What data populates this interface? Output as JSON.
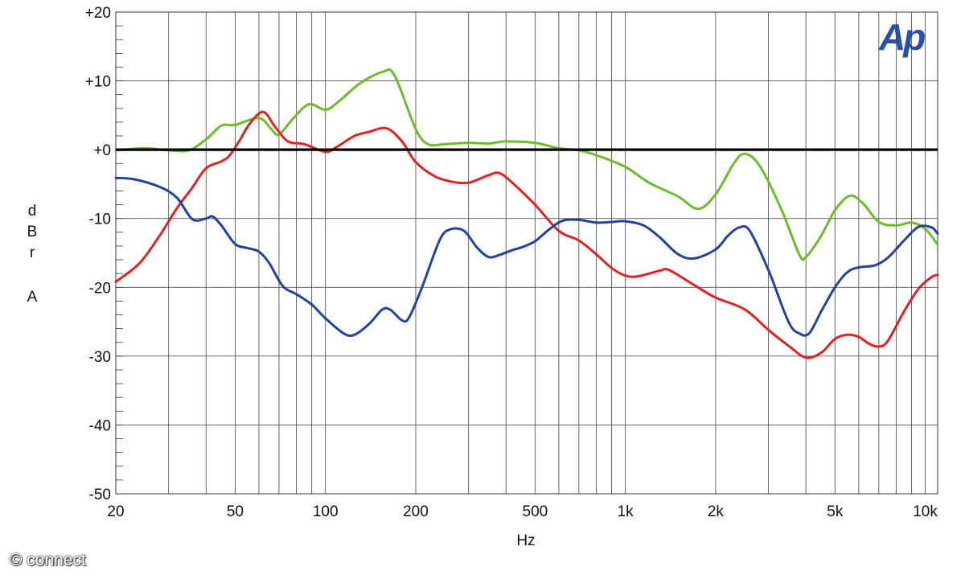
{
  "chart_data": {
    "type": "line",
    "x_scale": "log",
    "xlim": [
      20,
      11000
    ],
    "ylim": [
      -50,
      20
    ],
    "grid": true,
    "xlabel": "Hz",
    "ylabel": "dBr A",
    "ylabel_letters": [
      "d",
      "B",
      "r",
      "A"
    ],
    "x_ticks": [
      {
        "value": 20,
        "label": "20"
      },
      {
        "value": 50,
        "label": "50"
      },
      {
        "value": 100,
        "label": "100"
      },
      {
        "value": 200,
        "label": "200"
      },
      {
        "value": 500,
        "label": "500"
      },
      {
        "value": 1000,
        "label": "1k"
      },
      {
        "value": 2000,
        "label": "2k"
      },
      {
        "value": 5000,
        "label": "5k"
      },
      {
        "value": 10000,
        "label": "10k"
      }
    ],
    "y_ticks": [
      {
        "value": 20,
        "label": "+20"
      },
      {
        "value": 10,
        "label": "+10"
      },
      {
        "value": 0,
        "label": "+0"
      },
      {
        "value": -10,
        "label": "-10"
      },
      {
        "value": -20,
        "label": "-20"
      },
      {
        "value": -30,
        "label": "-30"
      },
      {
        "value": -40,
        "label": "-40"
      },
      {
        "value": -50,
        "label": "-50"
      }
    ],
    "reference_line": 0,
    "series": [
      {
        "color": "#6cbd2b",
        "points": [
          [
            20,
            -0.1
          ],
          [
            25,
            0.2
          ],
          [
            30,
            -0.1
          ],
          [
            35,
            -0.1
          ],
          [
            40,
            1.5
          ],
          [
            45,
            3.5
          ],
          [
            50,
            3.6
          ],
          [
            60,
            4.6
          ],
          [
            66,
            3.0
          ],
          [
            70,
            2.2
          ],
          [
            78,
            4.5
          ],
          [
            88,
            6.6
          ],
          [
            100,
            5.8
          ],
          [
            110,
            6.9
          ],
          [
            130,
            9.6
          ],
          [
            155,
            11.3
          ],
          [
            170,
            10.8
          ],
          [
            200,
            3.0
          ],
          [
            220,
            0.8
          ],
          [
            250,
            0.8
          ],
          [
            300,
            1.0
          ],
          [
            350,
            0.9
          ],
          [
            400,
            1.2
          ],
          [
            500,
            1.0
          ],
          [
            600,
            0.2
          ],
          [
            700,
            -0.1
          ],
          [
            800,
            -0.8
          ],
          [
            1000,
            -2.5
          ],
          [
            1200,
            -4.8
          ],
          [
            1500,
            -6.8
          ],
          [
            1750,
            -8.6
          ],
          [
            2000,
            -6.5
          ],
          [
            2300,
            -2.0
          ],
          [
            2500,
            -0.6
          ],
          [
            2800,
            -2.3
          ],
          [
            3300,
            -8.5
          ],
          [
            3800,
            -15.2
          ],
          [
            4000,
            -15.6
          ],
          [
            4500,
            -12.5
          ],
          [
            5000,
            -8.8
          ],
          [
            5600,
            -6.7
          ],
          [
            6200,
            -7.8
          ],
          [
            7000,
            -10.5
          ],
          [
            8000,
            -11.0
          ],
          [
            9000,
            -10.6
          ],
          [
            10000,
            -11.5
          ],
          [
            11000,
            -13.8
          ]
        ]
      },
      {
        "color": "#e02222",
        "points": [
          [
            20,
            -19.2
          ],
          [
            24,
            -16.5
          ],
          [
            28,
            -12.5
          ],
          [
            32,
            -8.5
          ],
          [
            36,
            -5.5
          ],
          [
            40,
            -2.7
          ],
          [
            45,
            -1.7
          ],
          [
            48,
            -0.8
          ],
          [
            52,
            1.5
          ],
          [
            56,
            3.8
          ],
          [
            62,
            5.5
          ],
          [
            68,
            3.3
          ],
          [
            75,
            1.2
          ],
          [
            85,
            0.8
          ],
          [
            100,
            -0.3
          ],
          [
            110,
            0.5
          ],
          [
            125,
            2.0
          ],
          [
            140,
            2.6
          ],
          [
            160,
            3.1
          ],
          [
            180,
            1.2
          ],
          [
            200,
            -1.8
          ],
          [
            230,
            -3.8
          ],
          [
            260,
            -4.6
          ],
          [
            300,
            -4.8
          ],
          [
            350,
            -3.7
          ],
          [
            380,
            -3.4
          ],
          [
            420,
            -4.8
          ],
          [
            500,
            -8.0
          ],
          [
            600,
            -11.8
          ],
          [
            700,
            -13.2
          ],
          [
            800,
            -15.2
          ],
          [
            900,
            -17.2
          ],
          [
            1000,
            -18.3
          ],
          [
            1100,
            -18.4
          ],
          [
            1300,
            -17.6
          ],
          [
            1400,
            -17.5
          ],
          [
            1700,
            -19.7
          ],
          [
            2000,
            -21.5
          ],
          [
            2500,
            -23.2
          ],
          [
            3000,
            -26.2
          ],
          [
            3500,
            -28.5
          ],
          [
            4000,
            -30.2
          ],
          [
            4500,
            -29.5
          ],
          [
            5000,
            -27.5
          ],
          [
            5500,
            -26.9
          ],
          [
            6000,
            -27.2
          ],
          [
            6500,
            -28.2
          ],
          [
            7000,
            -28.6
          ],
          [
            7500,
            -27.8
          ],
          [
            8500,
            -23.5
          ],
          [
            9500,
            -20.2
          ],
          [
            10500,
            -18.5
          ],
          [
            11000,
            -18.2
          ]
        ]
      },
      {
        "color": "#23439a",
        "points": [
          [
            20,
            -4.1
          ],
          [
            23,
            -4.3
          ],
          [
            28,
            -5.4
          ],
          [
            32,
            -7.0
          ],
          [
            36,
            -10.1
          ],
          [
            40,
            -10.0
          ],
          [
            42,
            -9.7
          ],
          [
            45,
            -11.0
          ],
          [
            50,
            -13.7
          ],
          [
            55,
            -14.3
          ],
          [
            60,
            -14.8
          ],
          [
            65,
            -16.5
          ],
          [
            72,
            -19.8
          ],
          [
            80,
            -21.0
          ],
          [
            90,
            -22.5
          ],
          [
            100,
            -24.5
          ],
          [
            115,
            -26.7
          ],
          [
            125,
            -26.9
          ],
          [
            140,
            -25.3
          ],
          [
            155,
            -23.2
          ],
          [
            165,
            -23.3
          ],
          [
            180,
            -24.8
          ],
          [
            190,
            -24.4
          ],
          [
            210,
            -20.0
          ],
          [
            240,
            -13.2
          ],
          [
            260,
            -11.6
          ],
          [
            290,
            -11.8
          ],
          [
            320,
            -14.2
          ],
          [
            350,
            -15.6
          ],
          [
            380,
            -15.3
          ],
          [
            420,
            -14.6
          ],
          [
            450,
            -14.2
          ],
          [
            500,
            -13.3
          ],
          [
            560,
            -11.5
          ],
          [
            620,
            -10.3
          ],
          [
            700,
            -10.2
          ],
          [
            800,
            -10.6
          ],
          [
            900,
            -10.5
          ],
          [
            1000,
            -10.4
          ],
          [
            1150,
            -11.0
          ],
          [
            1300,
            -12.7
          ],
          [
            1500,
            -15.2
          ],
          [
            1700,
            -15.8
          ],
          [
            2000,
            -14.5
          ],
          [
            2200,
            -12.5
          ],
          [
            2400,
            -11.3
          ],
          [
            2600,
            -11.8
          ],
          [
            3000,
            -17.5
          ],
          [
            3500,
            -25.0
          ],
          [
            3800,
            -26.7
          ],
          [
            4100,
            -26.7
          ],
          [
            4500,
            -23.5
          ],
          [
            5000,
            -20.0
          ],
          [
            5500,
            -17.8
          ],
          [
            6000,
            -17.1
          ],
          [
            6800,
            -16.8
          ],
          [
            7500,
            -15.7
          ],
          [
            8500,
            -13.2
          ],
          [
            9500,
            -11.2
          ],
          [
            10500,
            -11.3
          ],
          [
            11000,
            -12.2
          ]
        ]
      }
    ]
  },
  "logo_text": "Ap",
  "copyright": "© connect"
}
